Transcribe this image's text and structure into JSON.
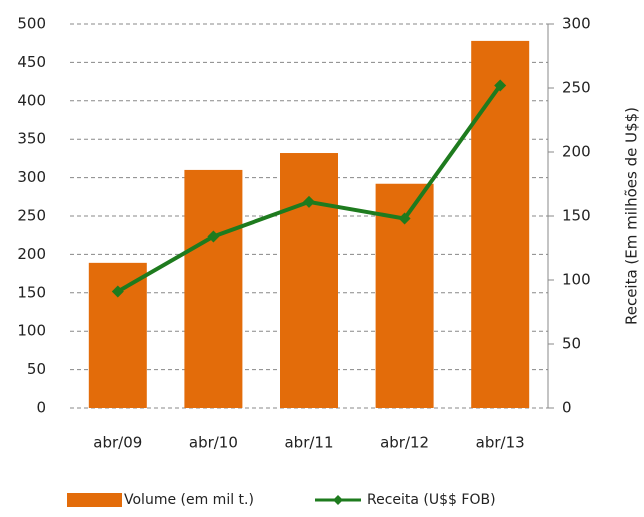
{
  "chart_data": {
    "type": "bar_line",
    "categories": [
      "abr/09",
      "abr/10",
      "abr/11",
      "abr/12",
      "abr/13"
    ],
    "series": [
      {
        "name": "Volume (em mil t.)",
        "color": "#e36c0a",
        "type": "bar",
        "values": [
          189,
          310,
          332,
          292,
          478
        ]
      },
      {
        "name": "Receita (U$$ FOB)",
        "color": "#1e7b1e",
        "type": "line",
        "axis": "y2",
        "values": [
          91,
          134,
          161,
          148,
          252
        ]
      }
    ],
    "ylim": [
      0,
      500
    ],
    "yticks": [
      0,
      50,
      100,
      150,
      200,
      250,
      300,
      350,
      400,
      450,
      500
    ],
    "y2lim": [
      0,
      300
    ],
    "y2ticks": [
      0,
      50,
      100,
      150,
      200,
      250,
      300
    ],
    "y2label": "Receita (Em milhões de U$$)",
    "grid": true
  }
}
